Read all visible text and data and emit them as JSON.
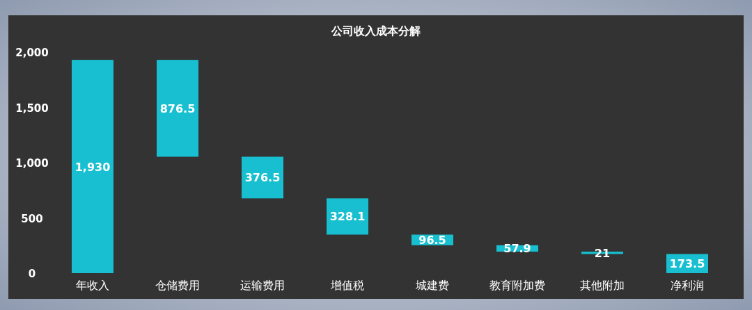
{
  "chart_data": {
    "type": "bar",
    "title": "公司收入成本分解",
    "categories": [
      "年收入",
      "仓储费用",
      "运输费用",
      "增值税",
      "城建费",
      "教育附加费",
      "其他附加",
      "净利润"
    ],
    "values": [
      1930,
      876.5,
      376.5,
      328.1,
      96.5,
      57.9,
      21,
      173.5
    ],
    "base": [
      0,
      1053.5,
      677,
      348.9,
      252.4,
      194.5,
      173.5,
      0
    ],
    "value_labels": [
      "1,930",
      "876.5",
      "376.5",
      "328.1",
      "96.5",
      "57.9",
      "21",
      "173.5"
    ],
    "color": "#17bfd0",
    "ylim": [
      0,
      2000
    ],
    "yticks": [
      {
        "value": 0,
        "label": "0"
      },
      {
        "value": 500,
        "label": "500"
      },
      {
        "value": 1000,
        "label": "1,000"
      },
      {
        "value": 1500,
        "label": "1,500"
      },
      {
        "value": 2000,
        "label": "2,000"
      }
    ],
    "grid": false,
    "legend": false
  }
}
